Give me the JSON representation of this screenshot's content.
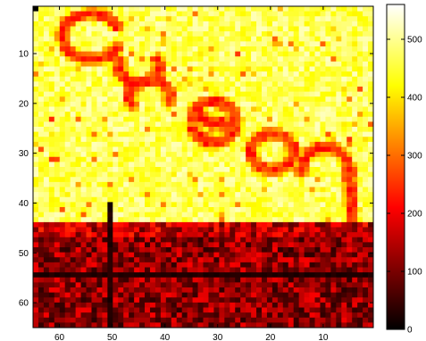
{
  "chart_data": {
    "type": "heatmap",
    "title": "",
    "xlabel": "",
    "ylabel": "",
    "xlim": [
      65,
      0.5
    ],
    "ylim": [
      0.5,
      65
    ],
    "x_direction": "reversed",
    "y_direction": "top-to-bottom",
    "rows": 64,
    "cols": 64,
    "xticks": [
      {
        "value": 60,
        "label": "60"
      },
      {
        "value": 50,
        "label": "50"
      },
      {
        "value": 40,
        "label": "40"
      },
      {
        "value": 30,
        "label": "30"
      },
      {
        "value": 20,
        "label": "20"
      },
      {
        "value": 10,
        "label": "10"
      }
    ],
    "yticks": [
      {
        "value": 10,
        "label": "10"
      },
      {
        "value": 20,
        "label": "20"
      },
      {
        "value": 30,
        "label": "30"
      },
      {
        "value": 40,
        "label": "40"
      },
      {
        "value": 50,
        "label": "50"
      },
      {
        "value": 60,
        "label": "60"
      }
    ],
    "colorbar": {
      "colormap": "hot",
      "range": [
        0,
        560
      ],
      "ticks": [
        {
          "value": 0,
          "label": "0"
        },
        {
          "value": 100,
          "label": "100"
        },
        {
          "value": 200,
          "label": "200"
        },
        {
          "value": 300,
          "label": "300"
        },
        {
          "value": 400,
          "label": "400"
        },
        {
          "value": 500,
          "label": "500"
        }
      ]
    },
    "value_levels": {
      "bright_background": 470,
      "letter_strokes": 250,
      "lower_band": 120,
      "dark_lines": 15,
      "noise_amplitude": 110
    },
    "features": [
      {
        "kind": "letter",
        "text": "C"
      },
      {
        "kind": "letter",
        "text": "S"
      },
      {
        "kind": "letter",
        "text": "e"
      },
      {
        "kind": "letter",
        "text": "a"
      },
      {
        "kind": "letter",
        "text": "n"
      },
      {
        "kind": "dark_row",
        "at": 54
      },
      {
        "kind": "dark_column",
        "at": 50
      }
    ],
    "lower_band_start_row": 44
  }
}
